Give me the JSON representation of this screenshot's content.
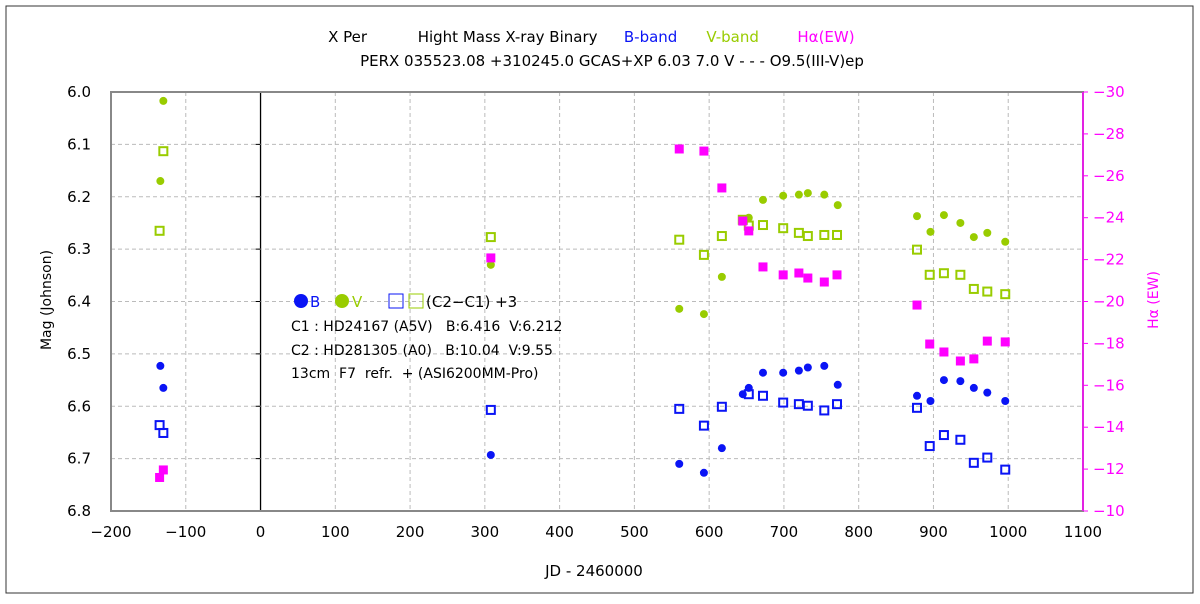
{
  "chart_data": {
    "type": "scatter",
    "title": {
      "object": "X Per",
      "type": "Hight Mass X-ray Binary",
      "b_label": "B-band",
      "v_label": "V-band",
      "ha_label": "Hα(EW)"
    },
    "subtitle": "PERX 035523.08 +310245.0 GCAS+XP 6.03 7.0 V - - - O9.5(III-V)ep",
    "xlabel": "JD - 2460000",
    "ylabel": "Mag (Johnson)",
    "y2label": "Hα (EW)",
    "xlim": [
      -200,
      1100
    ],
    "ylim": [
      6.0,
      6.8
    ],
    "y2lim": [
      -30,
      -10
    ],
    "x_ticks": [
      "-200",
      "-100",
      "0",
      "100",
      "200",
      "300",
      "400",
      "500",
      "600",
      "700",
      "800",
      "900",
      "1000",
      "1100"
    ],
    "y_ticks": [
      "6.0",
      "6.1",
      "6.2",
      "6.3",
      "6.4",
      "6.5",
      "6.6",
      "6.7",
      "6.8"
    ],
    "y2_ticks": [
      "-30",
      "-28",
      "-26",
      "-24",
      "-22",
      "-20",
      "-18",
      "-16",
      "-14",
      "-12",
      "-10"
    ],
    "grid": true,
    "colors": {
      "B": "#0a14f5",
      "V": "#99cc00",
      "Ha": "#ff00ff",
      "grid": "#bbbbbb"
    },
    "legend": {
      "b": "B",
      "v": "V",
      "comp": "(C2−C1) +3",
      "c1": "C1 : HD24167 (A5V)   B:6.416  V:6.212",
      "c2": "C2 : HD281305 (A0)   B:10.04  V:9.55",
      "setup": "13cm  F7  refr.  + (ASI6200MM-Pro)"
    },
    "series": [
      {
        "name": "B",
        "marker": "filled-circle",
        "axis": "left",
        "x": [
          -134,
          -130,
          308,
          560,
          593,
          617,
          645,
          653,
          672,
          699,
          720,
          732,
          754,
          772,
          878,
          896,
          914,
          936,
          954,
          972,
          996
        ],
        "y": [
          6.523,
          6.565,
          6.693,
          6.71,
          6.727,
          6.68,
          6.577,
          6.565,
          6.536,
          6.536,
          6.532,
          6.526,
          6.523,
          6.559,
          6.58,
          6.59,
          6.55,
          6.552,
          6.565,
          6.574,
          6.59
        ]
      },
      {
        "name": "V",
        "marker": "filled-circle",
        "axis": "left",
        "x": [
          -130,
          -134,
          308,
          560,
          593,
          617,
          653,
          672,
          699,
          720,
          732,
          754,
          772,
          878,
          896,
          914,
          936,
          954,
          972,
          996
        ],
        "y": [
          6.017,
          6.17,
          6.33,
          6.414,
          6.424,
          6.353,
          6.24,
          6.206,
          6.198,
          6.196,
          6.193,
          6.196,
          6.216,
          6.237,
          6.267,
          6.235,
          6.25,
          6.277,
          6.269,
          6.286
        ]
      },
      {
        "name": "B (C2-C1)+3",
        "marker": "open-square",
        "axis": "left",
        "x": [
          -135,
          -130,
          308,
          560,
          593,
          617,
          653,
          672,
          699,
          720,
          732,
          754,
          771,
          878,
          895,
          914,
          936,
          954,
          972,
          996
        ],
        "y": [
          6.636,
          6.651,
          6.607,
          6.605,
          6.637,
          6.601,
          6.577,
          6.58,
          6.593,
          6.596,
          6.599,
          6.608,
          6.596,
          6.603,
          6.676,
          6.655,
          6.664,
          6.708,
          6.698,
          6.721
        ]
      },
      {
        "name": "V (C2-C1)+3",
        "marker": "open-square",
        "axis": "left",
        "x": [
          -130,
          -135,
          308,
          560,
          593,
          617,
          645,
          653,
          672,
          699,
          720,
          732,
          754,
          771,
          878,
          895,
          914,
          936,
          954,
          972,
          996
        ],
        "y": [
          6.113,
          6.265,
          6.277,
          6.282,
          6.311,
          6.275,
          6.244,
          6.255,
          6.254,
          6.26,
          6.269,
          6.275,
          6.273,
          6.273,
          6.301,
          6.349,
          6.346,
          6.349,
          6.376,
          6.381,
          6.386
        ]
      },
      {
        "name": "Hα (EW)",
        "marker": "filled-square",
        "axis": "right",
        "x": [
          -130,
          -135,
          308,
          560,
          593,
          617,
          645,
          653,
          672,
          699,
          720,
          732,
          754,
          771,
          878,
          895,
          914,
          936,
          954,
          972,
          996
        ],
        "y": [
          -11.96,
          -11.6,
          -22.08,
          -27.28,
          -27.18,
          -25.42,
          -23.84,
          -23.37,
          -21.65,
          -21.27,
          -21.36,
          -21.12,
          -20.93,
          -21.27,
          -19.83,
          -17.97,
          -17.59,
          -17.16,
          -17.26,
          -18.11,
          -18.07
        ]
      }
    ]
  }
}
